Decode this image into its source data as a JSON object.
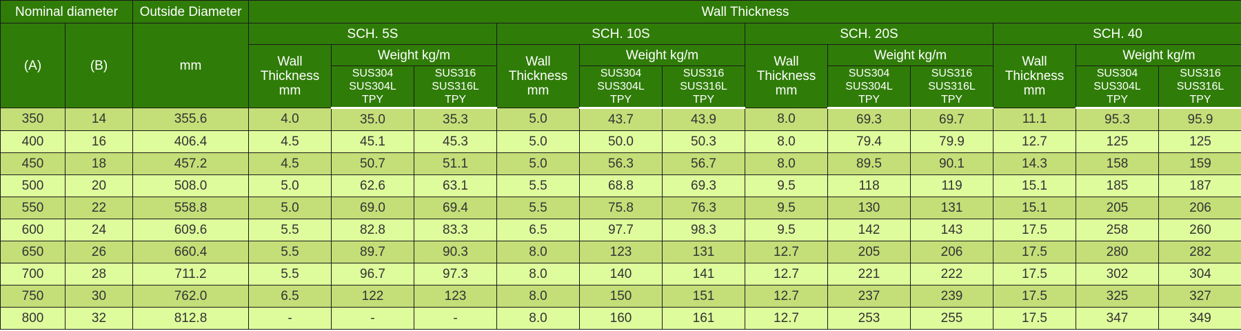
{
  "header": {
    "nominal_diameter": "Nominal diameter",
    "outside_diameter": "Outside Diameter",
    "wall_thickness": "Wall Thickness",
    "col_a": "(A)",
    "col_b": "(B)",
    "od_unit": "mm",
    "schedules": [
      "SCH. 5S",
      "SCH. 10S",
      "SCH. 20S",
      "SCH. 40"
    ],
    "wall_label": "Wall\nThickness\nmm",
    "weight_label": "Weight kg/m",
    "sus304_label": "SUS304\nSUS304L\nTPY",
    "sus316_label": "SUS316\nSUS316L\nTPY"
  },
  "table": {
    "rows": [
      [
        "350",
        "14",
        "355.6",
        "4.0",
        "35.0",
        "35.3",
        "5.0",
        "43.7",
        "43.9",
        "8.0",
        "69.3",
        "69.7",
        "11.1",
        "95.3",
        "95.9"
      ],
      [
        "400",
        "16",
        "406.4",
        "4.5",
        "45.1",
        "45.3",
        "5.0",
        "50.0",
        "50.3",
        "8.0",
        "79.4",
        "79.9",
        "12.7",
        "125",
        "125"
      ],
      [
        "450",
        "18",
        "457.2",
        "4.5",
        "50.7",
        "51.1",
        "5.0",
        "56.3",
        "56.7",
        "8.0",
        "89.5",
        "90.1",
        "14.3",
        "158",
        "159"
      ],
      [
        "500",
        "20",
        "508.0",
        "5.0",
        "62.6",
        "63.1",
        "5.5",
        "68.8",
        "69.3",
        "9.5",
        "118",
        "119",
        "15.1",
        "185",
        "187"
      ],
      [
        "550",
        "22",
        "558.8",
        "5.0",
        "69.0",
        "69.4",
        "5.5",
        "75.8",
        "76.3",
        "9.5",
        "130",
        "131",
        "15.1",
        "205",
        "206"
      ],
      [
        "600",
        "24",
        "609.6",
        "5.5",
        "82.8",
        "83.3",
        "6.5",
        "97.7",
        "98.3",
        "9.5",
        "142",
        "143",
        "17.5",
        "258",
        "260"
      ],
      [
        "650",
        "26",
        "660.4",
        "5.5",
        "89.7",
        "90.3",
        "8.0",
        "123",
        "131",
        "12.7",
        "205",
        "206",
        "17.5",
        "280",
        "282"
      ],
      [
        "700",
        "28",
        "711.2",
        "5.5",
        "96.7",
        "97.3",
        "8.0",
        "140",
        "141",
        "12.7",
        "221",
        "222",
        "17.5",
        "302",
        "304"
      ],
      [
        "750",
        "30",
        "762.0",
        "6.5",
        "122",
        "123",
        "8.0",
        "150",
        "151",
        "12.7",
        "237",
        "239",
        "17.5",
        "325",
        "327"
      ],
      [
        "800",
        "32",
        "812.8",
        "-",
        "-",
        "-",
        "8.0",
        "160",
        "161",
        "12.7",
        "253",
        "255",
        "17.5",
        "347",
        "349"
      ]
    ]
  }
}
